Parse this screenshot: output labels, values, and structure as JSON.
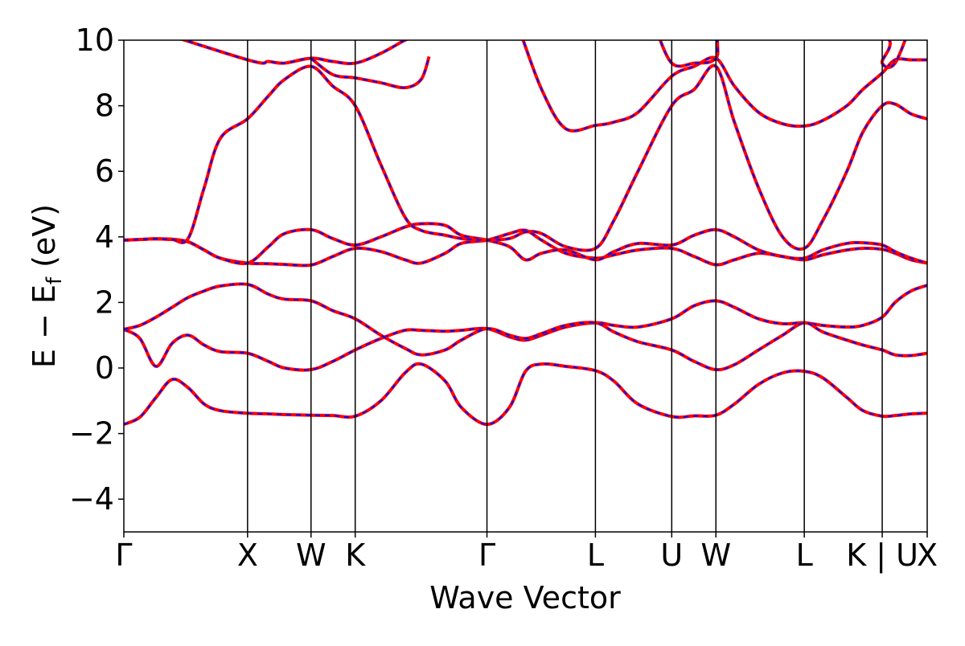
{
  "chart_data": {
    "type": "line",
    "xlabel": "Wave Vector",
    "ylabel": "E − E",
    "ylabel_sub": "f",
    "ylabel_unit": " (eV)",
    "xlim": [
      0,
      1
    ],
    "ylim": [
      -5,
      10
    ],
    "yticks": [
      {
        "value": -4,
        "label": "−4"
      },
      {
        "value": -2,
        "label": "−2"
      },
      {
        "value": 0,
        "label": "0"
      },
      {
        "value": 2,
        "label": "2"
      },
      {
        "value": 4,
        "label": "4"
      },
      {
        "value": 6,
        "label": "6"
      },
      {
        "value": 8,
        "label": "8"
      },
      {
        "value": 10,
        "label": "10"
      }
    ],
    "high_symmetry_points": [
      {
        "label": "Γ",
        "x": 0.0
      },
      {
        "label": "X",
        "x": 0.154
      },
      {
        "label": "W",
        "x": 0.233
      },
      {
        "label": "K",
        "x": 0.288
      },
      {
        "label": "Γ",
        "x": 0.452
      },
      {
        "label": "L",
        "x": 0.587
      },
      {
        "label": "U",
        "x": 0.682
      },
      {
        "label": "W",
        "x": 0.737
      },
      {
        "label": "L",
        "x": 0.847
      },
      {
        "label": "K | U",
        "x": 0.944
      },
      {
        "label": "X",
        "x": 1.0
      }
    ],
    "grid": false,
    "legend": "none",
    "colors": {
      "upper_line": "#ff0000",
      "lower_line": "#0000ff"
    },
    "series": [
      {
        "x": [
          0.0,
          0.02,
          0.04,
          0.06,
          0.08,
          0.1,
          0.12,
          0.154,
          0.18,
          0.2,
          0.233,
          0.26,
          0.288,
          0.32,
          0.35,
          0.37,
          0.4,
          0.42,
          0.452,
          0.48,
          0.5,
          0.52,
          0.55,
          0.587,
          0.61,
          0.64,
          0.682,
          0.71,
          0.737,
          0.76,
          0.79,
          0.82,
          0.847,
          0.87,
          0.9,
          0.92,
          0.944,
          0.96,
          0.98,
          1.0
        ],
        "y": [
          -1.72,
          -1.5,
          -0.9,
          -0.35,
          -0.6,
          -1.1,
          -1.3,
          -1.38,
          -1.4,
          -1.42,
          -1.44,
          -1.45,
          -1.47,
          -1.0,
          -0.15,
          0.12,
          -0.4,
          -1.2,
          -1.72,
          -1.2,
          -0.1,
          0.12,
          0.05,
          -0.08,
          -0.4,
          -1.1,
          -1.48,
          -1.46,
          -1.44,
          -1.1,
          -0.5,
          -0.15,
          -0.1,
          -0.3,
          -0.9,
          -1.3,
          -1.47,
          -1.45,
          -1.4,
          -1.38
        ]
      },
      {
        "x": [
          0.0,
          0.02,
          0.04,
          0.06,
          0.08,
          0.1,
          0.12,
          0.154,
          0.18,
          0.2,
          0.233,
          0.26,
          0.288,
          0.32,
          0.35,
          0.37,
          0.4,
          0.42,
          0.452,
          0.48,
          0.5,
          0.52,
          0.55,
          0.587,
          0.61,
          0.64,
          0.682,
          0.71,
          0.737,
          0.76,
          0.79,
          0.82,
          0.847,
          0.87,
          0.9,
          0.92,
          0.944,
          0.96,
          0.98,
          1.0
        ],
        "y": [
          1.18,
          0.9,
          0.05,
          0.75,
          1.0,
          0.7,
          0.5,
          0.45,
          0.2,
          0.0,
          -0.05,
          0.2,
          0.55,
          0.9,
          1.15,
          1.15,
          1.12,
          1.15,
          1.2,
          0.95,
          0.85,
          1.0,
          1.25,
          1.38,
          1.3,
          1.25,
          1.5,
          1.9,
          2.05,
          1.85,
          1.5,
          1.35,
          1.38,
          1.3,
          1.25,
          1.3,
          1.55,
          2.0,
          2.35,
          2.52
        ]
      },
      {
        "x": [
          0.0,
          0.02,
          0.04,
          0.06,
          0.08,
          0.1,
          0.12,
          0.154,
          0.18,
          0.2,
          0.233,
          0.26,
          0.288,
          0.32,
          0.35,
          0.37,
          0.4,
          0.42,
          0.452,
          0.48,
          0.5,
          0.52,
          0.55,
          0.587,
          0.61,
          0.64,
          0.682,
          0.71,
          0.737,
          0.76,
          0.79,
          0.82,
          0.847,
          0.87,
          0.9,
          0.92,
          0.944,
          0.96,
          0.98,
          1.0
        ],
        "y": [
          1.18,
          1.3,
          1.55,
          1.85,
          2.15,
          2.35,
          2.5,
          2.55,
          2.25,
          2.1,
          2.05,
          1.75,
          1.5,
          1.0,
          0.6,
          0.4,
          0.55,
          0.85,
          1.2,
          1.0,
          0.9,
          1.05,
          1.3,
          1.38,
          1.1,
          0.8,
          0.55,
          0.2,
          -0.05,
          0.1,
          0.55,
          1.0,
          1.38,
          1.1,
          0.85,
          0.7,
          0.55,
          0.4,
          0.38,
          0.45
        ]
      },
      {
        "x": [
          0.0,
          0.02,
          0.04,
          0.06,
          0.08,
          0.1,
          0.12,
          0.154,
          0.18,
          0.2,
          0.233,
          0.26,
          0.288,
          0.32,
          0.35,
          0.37,
          0.4,
          0.42,
          0.452,
          0.48,
          0.5,
          0.52,
          0.55,
          0.587,
          0.61,
          0.64,
          0.682,
          0.71,
          0.737,
          0.76,
          0.79,
          0.82,
          0.847,
          0.87,
          0.9,
          0.92,
          0.944,
          0.96,
          0.98,
          1.0
        ],
        "y": [
          3.9,
          3.92,
          3.94,
          3.93,
          3.85,
          3.6,
          3.35,
          3.2,
          3.18,
          3.16,
          3.14,
          3.4,
          3.65,
          3.55,
          3.3,
          3.2,
          3.5,
          3.8,
          3.9,
          4.1,
          4.2,
          3.9,
          3.5,
          3.35,
          3.45,
          3.6,
          3.65,
          3.4,
          3.15,
          3.3,
          3.5,
          3.4,
          3.3,
          3.45,
          3.6,
          3.65,
          3.62,
          3.5,
          3.3,
          3.2
        ]
      },
      {
        "x": [
          0.0,
          0.02,
          0.04,
          0.06,
          0.08,
          0.1,
          0.12,
          0.154,
          0.18,
          0.2,
          0.233,
          0.26,
          0.288,
          0.32,
          0.35,
          0.37,
          0.4,
          0.42,
          0.452,
          0.48,
          0.5,
          0.52,
          0.55,
          0.587,
          0.61,
          0.64,
          0.682,
          0.71,
          0.737,
          0.76,
          0.79,
          0.82,
          0.847,
          0.87,
          0.9,
          0.92,
          0.944,
          0.96,
          0.98,
          1.0
        ],
        "y": [
          3.9,
          3.92,
          3.94,
          3.92,
          3.85,
          3.6,
          3.35,
          3.2,
          3.7,
          4.1,
          4.22,
          3.95,
          3.75,
          4.0,
          4.3,
          4.4,
          4.35,
          4.05,
          3.9,
          3.7,
          3.3,
          3.5,
          3.6,
          3.3,
          3.55,
          3.8,
          3.75,
          4.05,
          4.22,
          4.0,
          3.6,
          3.4,
          3.35,
          3.6,
          3.8,
          3.82,
          3.75,
          3.55,
          3.35,
          3.2
        ]
      },
      {
        "x": [
          0.0,
          0.02,
          0.04,
          0.06,
          0.08,
          0.1,
          0.12,
          0.154,
          0.18,
          0.2,
          0.233,
          0.26,
          0.288,
          0.32,
          0.35,
          0.37,
          0.4,
          0.42,
          0.452,
          0.48,
          0.5,
          0.52,
          0.55,
          0.587,
          0.61,
          0.64,
          0.682,
          0.71,
          0.737,
          0.76,
          0.79,
          0.82,
          0.847,
          0.87,
          0.9,
          0.92,
          0.944,
          0.96,
          0.98,
          1.0
        ],
        "y": [
          3.9,
          3.92,
          3.94,
          3.92,
          3.95,
          5.5,
          7.0,
          7.6,
          8.3,
          8.8,
          9.2,
          8.6,
          8.0,
          6.2,
          4.6,
          4.2,
          4.05,
          3.95,
          3.9,
          3.95,
          4.15,
          4.1,
          3.7,
          3.65,
          4.5,
          6.0,
          8.0,
          8.5,
          9.2,
          7.5,
          5.5,
          4.0,
          3.65,
          4.5,
          6.0,
          7.2,
          8.0,
          8.05,
          7.75,
          7.6
        ]
      },
      {
        "x": [
          0.0,
          0.154,
          0.18,
          0.2,
          0.233,
          0.26,
          0.288,
          0.32,
          0.35,
          0.37,
          0.4
        ],
        "y": [
          10.6,
          9.4,
          9.35,
          9.3,
          9.45,
          9.35,
          9.3,
          9.6,
          10.0,
          10.2,
          10.6
        ]
      },
      {
        "x": [
          0.233,
          0.26,
          0.288,
          0.32,
          0.35,
          0.37,
          0.38
        ],
        "y": [
          9.45,
          8.95,
          8.85,
          8.7,
          8.55,
          8.8,
          9.5
        ]
      },
      {
        "x": [
          0.49,
          0.52,
          0.55,
          0.587,
          0.61,
          0.64,
          0.682,
          0.71,
          0.737,
          0.76,
          0.79,
          0.82,
          0.847,
          0.87,
          0.9,
          0.92,
          0.944,
          0.96,
          0.98,
          1.0
        ],
        "y": [
          10.5,
          8.5,
          7.3,
          7.4,
          7.5,
          7.8,
          8.9,
          9.2,
          9.45,
          8.6,
          7.8,
          7.45,
          7.38,
          7.55,
          8.0,
          8.5,
          9.0,
          9.4,
          9.4,
          9.4
        ]
      },
      {
        "x": [
          0.66,
          0.682,
          0.71,
          0.737,
          0.76,
          0.94,
          0.944,
          0.96,
          0.98
        ],
        "y": [
          10.5,
          9.3,
          9.3,
          9.45,
          10.5,
          10.2,
          9.3,
          9.3,
          10.5
        ]
      }
    ]
  }
}
